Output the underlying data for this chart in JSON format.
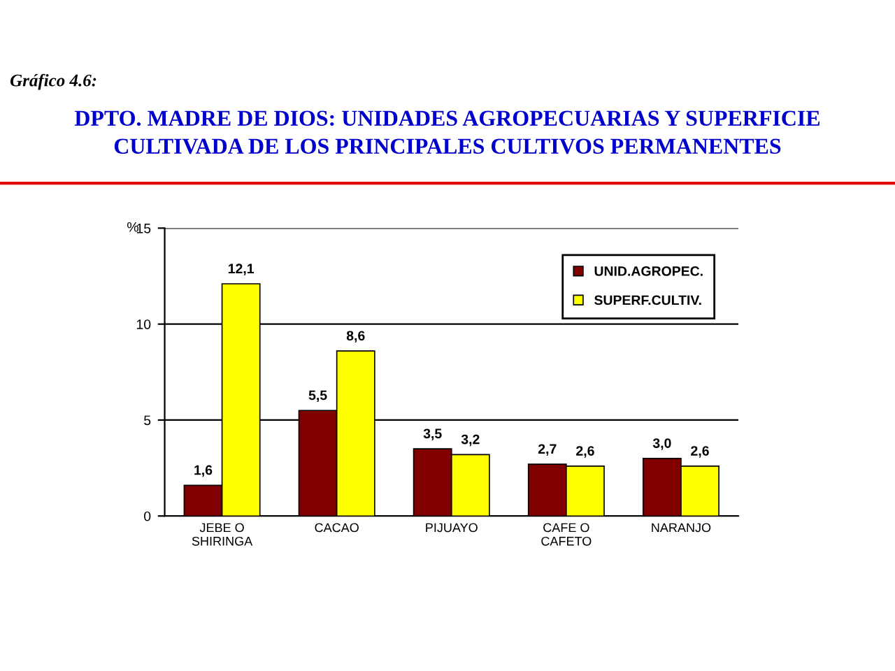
{
  "chart_data": {
    "type": "bar",
    "title": "DPTO. MADRE DE DIOS: UNIDADES AGROPECUARIAS Y SUPERFICIE\nCULTIVADA DE LOS PRINCIPALES CULTIVOS PERMANENTES",
    "annotations": [
      "Gráfico 4.6:"
    ],
    "ylabel": "%",
    "categories": [
      "JEBE O\nSHIRINGA",
      "CACAO",
      "PIJUAYO",
      "CAFE O\nCAFETO",
      "NARANJO"
    ],
    "series": [
      {
        "name": "UNID.AGROPEC.",
        "color": "#800000",
        "values": [
          1.6,
          5.5,
          3.5,
          2.7,
          3.0
        ],
        "value_labels": [
          "1,6",
          "5,5",
          "3,5",
          "2,7",
          "3,0"
        ]
      },
      {
        "name": "SUPERF.CULTIV.",
        "color": "#ffff00",
        "values": [
          12.1,
          8.6,
          3.2,
          2.6,
          2.6
        ],
        "value_labels": [
          "12,1",
          "8,6",
          "3,2",
          "2,6",
          "2,6"
        ]
      }
    ],
    "ylim": [
      0,
      15
    ],
    "yticks": [
      0,
      5,
      10,
      15
    ],
    "grid": "y",
    "legend": "top right"
  }
}
